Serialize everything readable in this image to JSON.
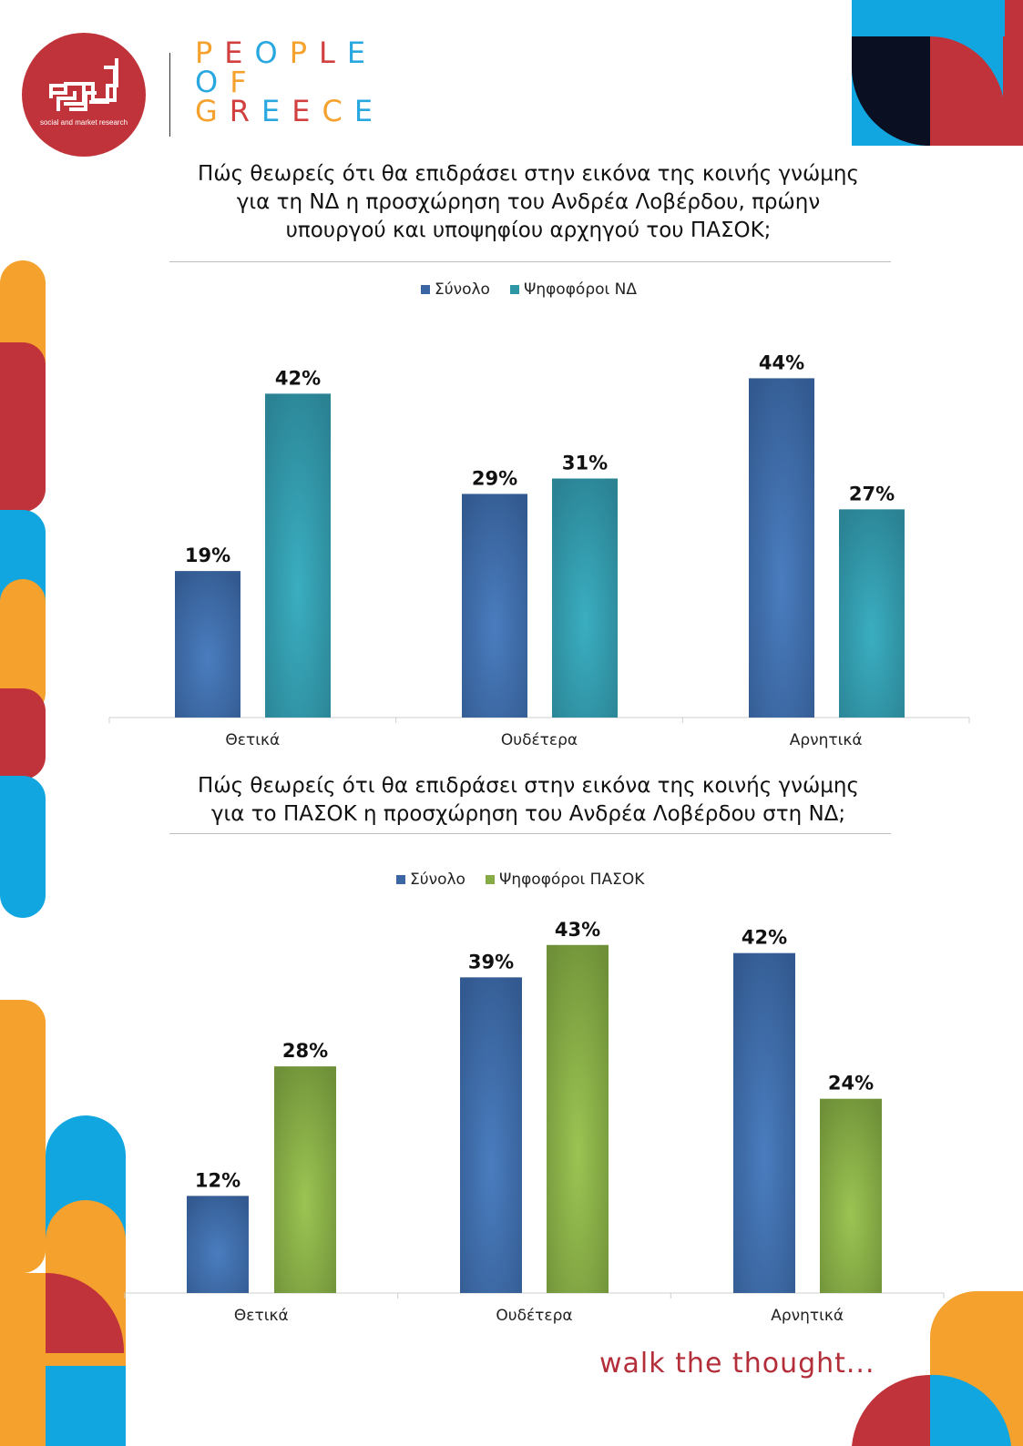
{
  "branding": {
    "logo_text": "social and market research",
    "brand_lines": [
      "PEOPLE",
      "OF",
      "GREECE"
    ],
    "tagline": "walk the thought...",
    "colors": {
      "red": "#c1333a",
      "orange": "#f5a12d",
      "blue": "#12a6e0",
      "navy": "#0a0f22"
    }
  },
  "chart1": {
    "title_lines": [
      "Πώς θεωρείς ότι θα επιδράσει στην εικόνα της κοινής γνώμης",
      "για τη ΝΔ η προσχώρηση του Ανδρέα Λοβέρδου, πρώην",
      "υπουργού και υποψηφίου αρχηγού του ΠΑΣΟΚ;"
    ],
    "legend": [
      {
        "label": "Σύνολο",
        "color": "#3c66a3"
      },
      {
        "label": "Ψηφοφόροι ΝΔ",
        "color": "#2e97a6"
      }
    ]
  },
  "chart2": {
    "title_lines": [
      "Πώς θεωρείς ότι θα επιδράσει στην εικόνα της κοινής γνώμης",
      "για το ΠΑΣΟΚ η προσχώρηση του Ανδρέα Λοβέρδου στη ΝΔ;"
    ],
    "legend": [
      {
        "label": "Σύνολο",
        "color": "#3c66a3"
      },
      {
        "label": "Ψηφοφόροι ΠΑΣΟΚ",
        "color": "#86ab44"
      }
    ]
  },
  "chart_data": [
    {
      "type": "bar",
      "title": "Πώς θεωρείς ότι θα επιδράσει στην εικόνα της κοινής γνώμης για τη ΝΔ η προσχώρηση του Ανδρέα Λοβέρδου, πρώην υπουργού και υποψηφίου αρχηγού του ΠΑΣΟΚ;",
      "categories": [
        "Θετικά",
        "Ουδέτερα",
        "Αρνητικά"
      ],
      "series": [
        {
          "name": "Σύνολο",
          "values": [
            19,
            29,
            44
          ],
          "labels": [
            "19%",
            "29%",
            "44%"
          ],
          "color": "#3c66a3"
        },
        {
          "name": "Ψηφοφόροι ΝΔ",
          "values": [
            42,
            31,
            27
          ],
          "labels": [
            "42%",
            "31%",
            "27%"
          ],
          "color": "#2e97a6"
        }
      ],
      "ylim": [
        0,
        47
      ],
      "grid": false,
      "legend_position": "top"
    },
    {
      "type": "bar",
      "title": "Πώς θεωρείς ότι θα επιδράσει στην εικόνα της κοινής γνώμης για το ΠΑΣΟΚ η προσχώρηση του Ανδρέα Λοβέρδου στη ΝΔ;",
      "categories": [
        "Θετικά",
        "Ουδέτερα",
        "Αρνητικά"
      ],
      "series": [
        {
          "name": "Σύνολο",
          "values": [
            12,
            39,
            42
          ],
          "labels": [
            "12%",
            "39%",
            "42%"
          ],
          "color": "#3c66a3"
        },
        {
          "name": "Ψηφοφόροι ΠΑΣΟΚ",
          "values": [
            28,
            43,
            24
          ],
          "labels": [
            "28%",
            "43%",
            "24%"
          ],
          "color": "#86ab44"
        }
      ],
      "ylim": [
        0,
        45
      ],
      "grid": false,
      "legend_position": "top"
    }
  ]
}
